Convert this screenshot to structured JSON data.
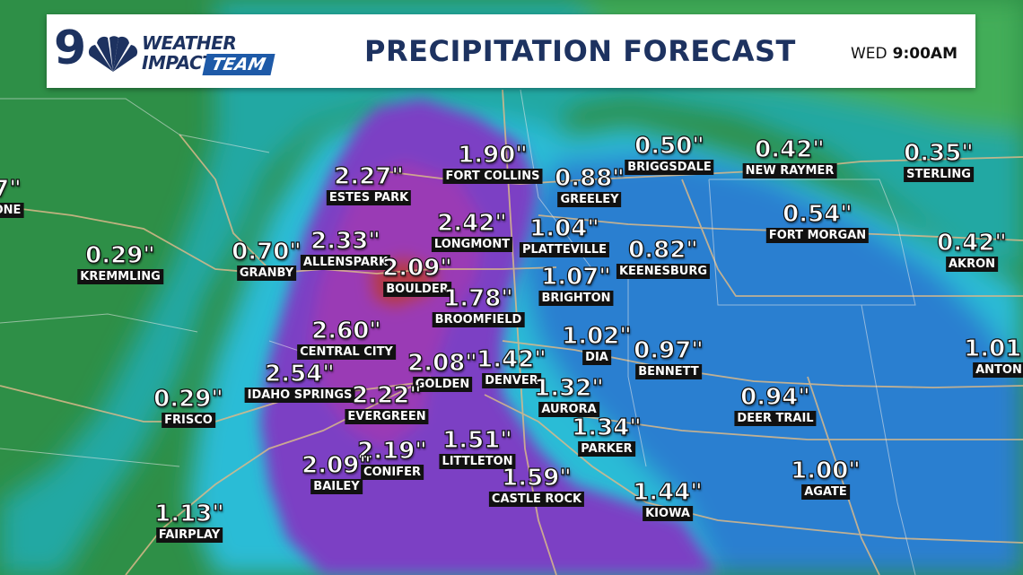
{
  "header": {
    "logo_number": "9",
    "logo_weather": "WEATHER",
    "logo_impact": "IMPACT",
    "logo_team": "TEAM",
    "title": "PRECIPITATION FORECAST",
    "day": "WED",
    "time": "9:00AM"
  },
  "colors": {
    "low": "#2e8f47",
    "mid_green": "#3aa556",
    "teal": "#22a8a3",
    "cyan": "#2bbcd6",
    "blue": "#2a7fd0",
    "purple": "#7b3fc4",
    "violet": "#9a3bb5",
    "red": "#b33a4a",
    "header_text": "#1d3260",
    "team_badge": "#1e5aa8"
  },
  "labels": [
    {
      "id": "partial-left",
      "value": "7\"",
      "name": "ONE"
    },
    {
      "id": "kremmling",
      "value": "0.29\"",
      "name": "KREMMLING"
    },
    {
      "id": "granby",
      "value": "0.70\"",
      "name": "GRANBY"
    },
    {
      "id": "estes-park",
      "value": "2.27\"",
      "name": "ESTES PARK"
    },
    {
      "id": "allenspark",
      "value": "2.33\"",
      "name": "ALLENSPARK"
    },
    {
      "id": "boulder",
      "value": "2.09\"",
      "name": "BOULDER"
    },
    {
      "id": "fort-collins",
      "value": "1.90\"",
      "name": "FORT COLLINS"
    },
    {
      "id": "longmont",
      "value": "2.42\"",
      "name": "LONGMONT"
    },
    {
      "id": "greeley",
      "value": "0.88\"",
      "name": "GREELEY"
    },
    {
      "id": "briggsdale",
      "value": "0.50\"",
      "name": "BRIGGSDALE"
    },
    {
      "id": "new-raymer",
      "value": "0.42\"",
      "name": "NEW RAYMER"
    },
    {
      "id": "sterling",
      "value": "0.35\"",
      "name": "STERLING"
    },
    {
      "id": "platteville",
      "value": "1.04\"",
      "name": "PLATTEVILLE"
    },
    {
      "id": "fort-morgan",
      "value": "0.54\"",
      "name": "FORT MORGAN"
    },
    {
      "id": "keenesburg",
      "value": "0.82\"",
      "name": "KEENESBURG"
    },
    {
      "id": "akron",
      "value": "0.42\"",
      "name": "AKRON"
    },
    {
      "id": "brighton",
      "value": "1.07\"",
      "name": "BRIGHTON"
    },
    {
      "id": "broomfield",
      "value": "1.78\"",
      "name": "BROOMFIELD"
    },
    {
      "id": "central-city",
      "value": "2.60\"",
      "name": "CENTRAL CITY"
    },
    {
      "id": "dia",
      "value": "1.02\"",
      "name": "DIA"
    },
    {
      "id": "bennett",
      "value": "0.97\"",
      "name": "BENNETT"
    },
    {
      "id": "anton",
      "value": "1.01\"",
      "name": "ANTON"
    },
    {
      "id": "idaho-springs",
      "value": "2.54\"",
      "name": "IDAHO SPRINGS"
    },
    {
      "id": "golden",
      "value": "2.08\"",
      "name": "GOLDEN"
    },
    {
      "id": "denver",
      "value": "1.42\"",
      "name": "DENVER"
    },
    {
      "id": "frisco",
      "value": "0.29\"",
      "name": "FRISCO"
    },
    {
      "id": "evergreen",
      "value": "2.22\"",
      "name": "EVERGREEN"
    },
    {
      "id": "aurora",
      "value": "1.32\"",
      "name": "AURORA"
    },
    {
      "id": "deer-trail",
      "value": "0.94\"",
      "name": "DEER TRAIL"
    },
    {
      "id": "parker",
      "value": "1.34\"",
      "name": "PARKER"
    },
    {
      "id": "conifer",
      "value": "2.19\"",
      "name": "CONIFER"
    },
    {
      "id": "littleton",
      "value": "1.51\"",
      "name": "LITTLETON"
    },
    {
      "id": "bailey",
      "value": "2.09\"",
      "name": "BAILEY"
    },
    {
      "id": "castle-rock",
      "value": "1.59\"",
      "name": "CASTLE ROCK"
    },
    {
      "id": "agate",
      "value": "1.00\"",
      "name": "AGATE"
    },
    {
      "id": "kiowa",
      "value": "1.44\"",
      "name": "KIOWA"
    },
    {
      "id": "fairplay",
      "value": "1.13\"",
      "name": "FAIRPLAY"
    }
  ]
}
